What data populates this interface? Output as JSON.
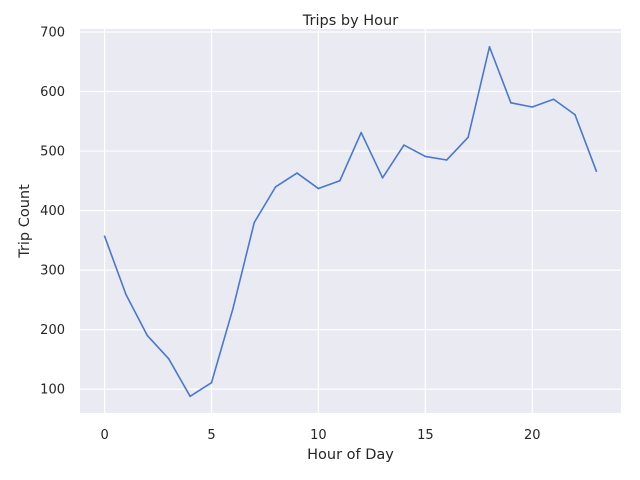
{
  "chart_data": {
    "type": "line",
    "title": "Trips by Hour",
    "xlabel": "Hour of Day",
    "ylabel": "Trip Count",
    "xlim": [
      -1.15,
      24.15
    ],
    "ylim": [
      60,
      705
    ],
    "xticks": [
      0,
      5,
      10,
      15,
      20
    ],
    "yticks": [
      100,
      200,
      300,
      400,
      500,
      600,
      700
    ],
    "grid": true,
    "colors": {
      "background": "#eaeaf2",
      "grid": "#ffffff",
      "line": "#4878cf"
    },
    "x": [
      0,
      1,
      2,
      3,
      4,
      5,
      6,
      7,
      8,
      9,
      10,
      11,
      12,
      13,
      14,
      15,
      16,
      17,
      18,
      19,
      20,
      21,
      22,
      23
    ],
    "series": [
      {
        "values": [
          357,
          259,
          190,
          151,
          88,
          111,
          235,
          380,
          440,
          463,
          437,
          450,
          531,
          455,
          510,
          491,
          485,
          523,
          675,
          581,
          574,
          587,
          561,
          466
        ]
      }
    ]
  }
}
